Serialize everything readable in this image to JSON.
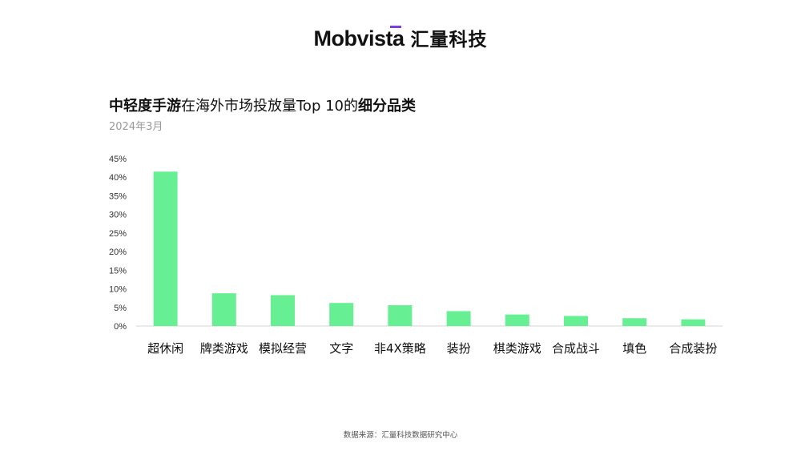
{
  "brand": {
    "logo_text": "Mobvista",
    "logo_cn": "汇量科技",
    "accent_color": "#7b3fe4"
  },
  "title": {
    "part1": "中轻度手游",
    "part2": "在海外市场投放量Top 10的",
    "part3": "细分品类"
  },
  "subtitle": "2024年3月",
  "footer": {
    "source": "数据来源：汇量科技数据研究中心"
  },
  "chart_data": {
    "type": "bar",
    "title": "中轻度手游在海外市场投放量Top 10的细分品类",
    "subtitle": "2024年3月",
    "categories": [
      "超休闲",
      "牌类游戏",
      "模拟经营",
      "文字",
      "非4X策略",
      "装扮",
      "棋类游戏",
      "合成战斗",
      "填色",
      "合成装扮"
    ],
    "values": [
      41.5,
      8.8,
      8.3,
      6.2,
      5.6,
      4.0,
      3.1,
      2.7,
      2.1,
      1.8
    ],
    "unit": "%",
    "ylim": [
      0,
      45
    ],
    "yticks": [
      "0%",
      "5%",
      "10%",
      "15%",
      "20%",
      "25%",
      "30%",
      "35%",
      "40%",
      "45%"
    ],
    "bar_color": "#66ef93",
    "grid": false
  }
}
